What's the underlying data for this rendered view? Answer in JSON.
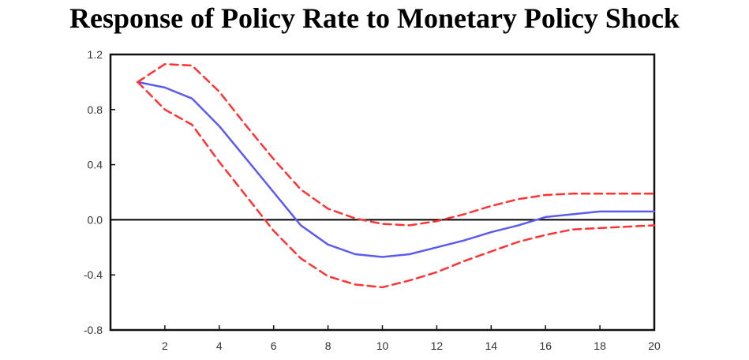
{
  "chart_data": {
    "type": "line",
    "title": "Response of Policy Rate to Monetary Policy Shock",
    "xlabel": "",
    "ylabel": "",
    "xlim": [
      0,
      20
    ],
    "ylim": [
      -0.8,
      1.2
    ],
    "x_ticks": [
      2,
      4,
      6,
      8,
      10,
      12,
      14,
      16,
      18,
      20
    ],
    "y_ticks": [
      "1.2",
      "0.8",
      "0.4",
      "0.0",
      "-0.4",
      "-0.8"
    ],
    "zero_line": true,
    "grid": false,
    "colors": {
      "response": "#5b5bf0",
      "band": "#ff3333",
      "zero": "#000000"
    },
    "x": [
      1,
      2,
      3,
      4,
      5,
      6,
      7,
      8,
      9,
      10,
      11,
      12,
      13,
      14,
      15,
      16,
      17,
      18,
      19,
      20
    ],
    "series": [
      {
        "values": [
          1.0,
          0.96,
          0.88,
          0.68,
          0.44,
          0.2,
          -0.04,
          -0.18,
          -0.25,
          -0.27,
          -0.25,
          -0.2,
          -0.15,
          -0.09,
          -0.04,
          0.02,
          0.04,
          0.06,
          0.06,
          0.06
        ],
        "style": "solid",
        "color": "#5b5bf0"
      },
      {
        "values": [
          1.0,
          1.13,
          1.12,
          0.93,
          0.68,
          0.44,
          0.22,
          0.08,
          0.01,
          -0.03,
          -0.04,
          -0.01,
          0.04,
          0.1,
          0.15,
          0.18,
          0.19,
          0.19,
          0.19,
          0.19
        ],
        "style": "dashed",
        "color": "#ff3333"
      },
      {
        "values": [
          1.0,
          0.8,
          0.69,
          0.42,
          0.17,
          -0.08,
          -0.28,
          -0.41,
          -0.47,
          -0.49,
          -0.44,
          -0.38,
          -0.3,
          -0.23,
          -0.16,
          -0.11,
          -0.07,
          -0.06,
          -0.05,
          -0.04
        ],
        "style": "dashed",
        "color": "#ff3333"
      }
    ]
  }
}
